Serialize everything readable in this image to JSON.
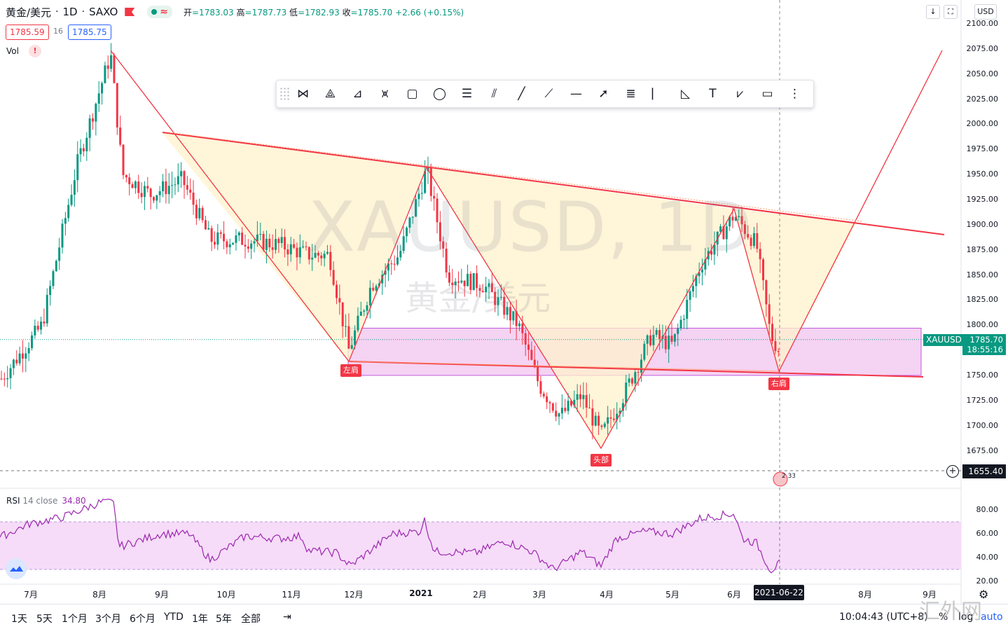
{
  "header": {
    "symbol": "黄金/美元",
    "interval": "1D",
    "exchange": "SAXO",
    "ohlc": {
      "open_label": "开",
      "open": "=1783.03",
      "high_label": "高",
      "high": "=1787.73",
      "low_label": "低",
      "low": "=1782.93",
      "close_label": "收",
      "close": "=1785.70",
      "change": "+2.66 (+0.15%)"
    }
  },
  "bid_ask": {
    "bid": "1785.59",
    "spread": "16",
    "ask": "1785.75"
  },
  "volume_label": "Vol",
  "alert_icon": "!",
  "toolbar": {
    "tools": [
      "xabcd-pattern-icon",
      "cypher-pattern-icon",
      "abcd-pattern-icon",
      "head-shoulders-icon",
      "rectangle-icon",
      "ellipse-icon",
      "fib-retracement-icon",
      "parallel-channel-icon",
      "trend-line-icon",
      "ray-icon",
      "horizontal-line-icon",
      "arrow-icon",
      "fib-channel-icon",
      "vertical-line-icon",
      "triangle-icon",
      "text-icon",
      "elliott-wave-icon",
      "callout-icon",
      "regression-trend-icon"
    ]
  },
  "watermark": {
    "symbol": "XAUUSD, 1D",
    "name": "黄金/美元"
  },
  "currency": "USD",
  "price_axis": {
    "ticks": [
      "2100.00",
      "2075.00",
      "2050.00",
      "2025.00",
      "2000.00",
      "1975.00",
      "1950.00",
      "1925.00",
      "1900.00",
      "1875.00",
      "1850.00",
      "1825.00",
      "1800.00",
      "1775.00",
      "1750.00",
      "1725.00",
      "1700.00",
      "1675.00"
    ],
    "last_symbol": "XAUUSD",
    "last_price": "1785.70",
    "countdown": "18:55:16",
    "crosshair_price": "1655.40"
  },
  "rsi": {
    "label": "RSI",
    "params": "14 close",
    "value": "34.80",
    "ticks": [
      "80.00",
      "60.00",
      "40.00",
      "20.00"
    ]
  },
  "time_axis": {
    "ticks": [
      {
        "label": "7月",
        "bold": false
      },
      {
        "label": "8月",
        "bold": false
      },
      {
        "label": "9月",
        "bold": false
      },
      {
        "label": "10月",
        "bold": false
      },
      {
        "label": "11月",
        "bold": false
      },
      {
        "label": "12月",
        "bold": false
      },
      {
        "label": "2021",
        "bold": true
      },
      {
        "label": "2月",
        "bold": false
      },
      {
        "label": "3月",
        "bold": false
      },
      {
        "label": "4月",
        "bold": false
      },
      {
        "label": "5月",
        "bold": false
      },
      {
        "label": "6月",
        "bold": false
      },
      {
        "label": "8月",
        "bold": false
      },
      {
        "label": "9月",
        "bold": false
      }
    ],
    "crosshair_date": "2021-06-22"
  },
  "pattern_labels": {
    "left_shoulder": "左肩",
    "head": "头部",
    "right_shoulder": "右肩"
  },
  "event_badge": "2 33",
  "bottom_bar": {
    "ranges": [
      "1天",
      "5天",
      "1个月",
      "3个月",
      "6个月",
      "YTD",
      "1年",
      "5年",
      "全部"
    ],
    "clock": "10:04:43 (UTC+8)",
    "percent": "%",
    "log": "log",
    "auto": "auto"
  },
  "corner_watermark": "汇外网",
  "chart_data": {
    "type": "candlestick",
    "title": "黄金/美元 1D SAXO",
    "ylim": [
      1655,
      2110
    ],
    "colors": {
      "up": "#089981",
      "down": "#f23645",
      "rsi": "#9c27b0",
      "pattern_line": "#f23645",
      "pattern_fill": "#fff3d6",
      "range_box": "#f3c8f0"
    },
    "key_points": [
      {
        "date": "2020-08-06",
        "price": 2075,
        "note": "peak"
      },
      {
        "date": "2020-11-30",
        "price": 1764,
        "label": "左肩"
      },
      {
        "date": "2021-01-06",
        "price": 1959
      },
      {
        "date": "2021-03-30",
        "price": 1677,
        "label": "头部"
      },
      {
        "date": "2021-06-01",
        "price": 1916
      },
      {
        "date": "2021-06-22",
        "price": 1755,
        "label": "右肩"
      }
    ],
    "rsi_range": [
      20,
      90
    ],
    "rsi_bands": [
      30,
      70
    ],
    "rsi_last": 34.8,
    "last_price": 1785.7
  }
}
